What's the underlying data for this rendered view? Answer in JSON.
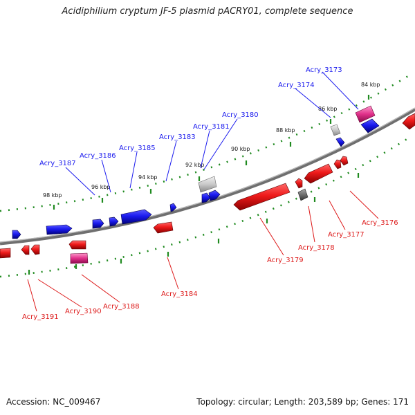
{
  "title": "Acidiphilium cryptum JF-5 plasmid pACRY01, complete sequence",
  "footer": {
    "accession": "Accession: NC_009467",
    "summary": "Topology: circular; Length: 203,589 bp; Genes: 171"
  },
  "colors": {
    "forward_strand": "#1a1aee",
    "reverse_strand": "#ee1a1a",
    "pseudo_forward": "#c8c8c8",
    "pseudo_reverse": "#707070",
    "rna_gene": "#e0308a",
    "label_forward": "#1a1aee",
    "label_reverse": "#dd1a1a",
    "backbone": "#808080",
    "ticks": "#1f8a1f"
  },
  "scale_labels": [
    "98 kbp",
    "96 kbp",
    "94 kbp",
    "92 kbp",
    "90 kbp",
    "88 kbp",
    "86 kbp",
    "84 kbp"
  ],
  "forward_gene_labels": [
    "Acry_3187",
    "Acry_3186",
    "Acry_3185",
    "Acry_3183",
    "Acry_3181",
    "Acry_3180",
    "Acry_3174",
    "Acry_3173"
  ],
  "reverse_gene_labels": [
    "Acry_3191",
    "Acry_3190",
    "Acry_3188",
    "Acry_3184",
    "Acry_3179",
    "Acry_3178",
    "Acry_3177",
    "Acry_3176"
  ]
}
